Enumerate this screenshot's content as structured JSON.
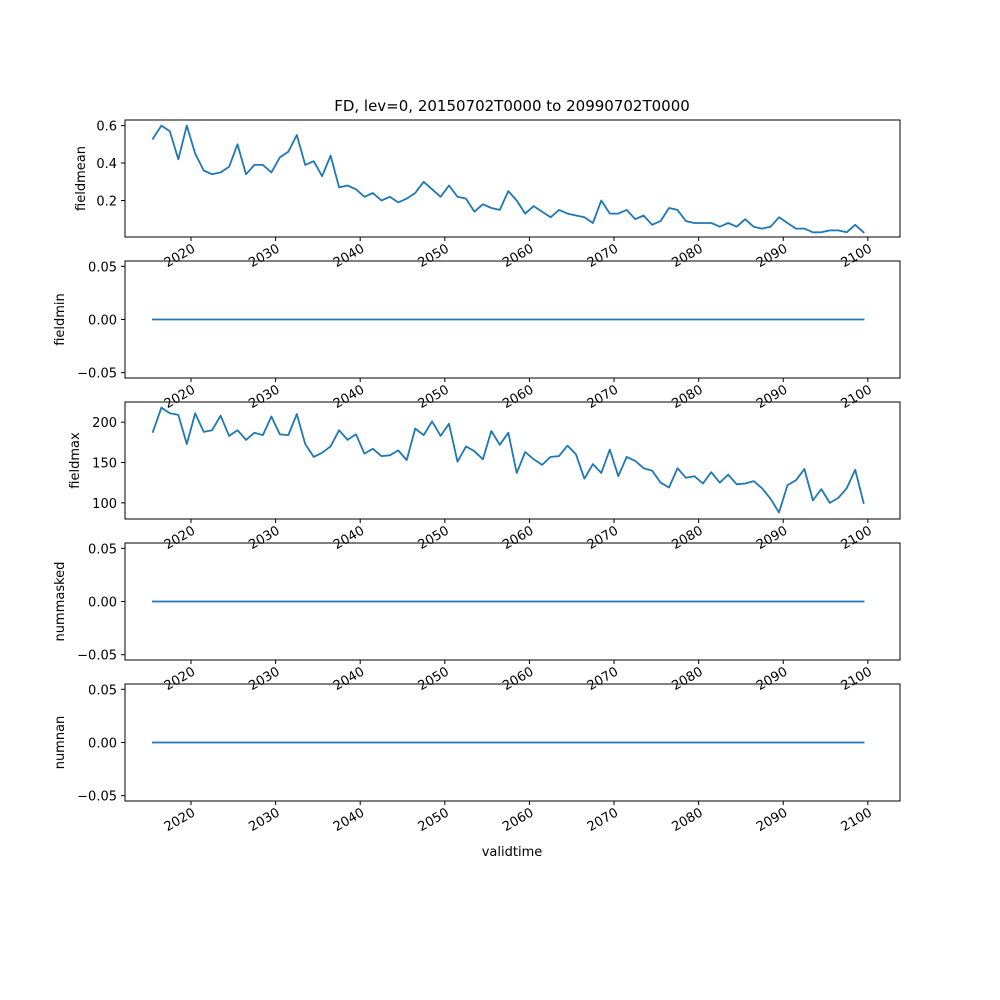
{
  "title": "FD, lev=0, 20150702T0000 to 20990702T0000",
  "xlabel": "validtime",
  "line_color": "#1f77b4",
  "chart_data": [
    {
      "type": "line",
      "ylabel": "fieldmean",
      "xlim": [
        2012.2,
        2103.8
      ],
      "ylim": [
        0.005,
        0.63
      ],
      "yticks": [
        0.2,
        0.4,
        0.6
      ],
      "yticklabels": [
        "0.2",
        "0.4",
        "0.6"
      ],
      "xticks": [
        2020,
        2030,
        2040,
        2050,
        2060,
        2070,
        2080,
        2090,
        2100
      ],
      "xticklabels": [
        "2020",
        "2030",
        "2040",
        "2050",
        "2060",
        "2070",
        "2080",
        "2090",
        "2100"
      ],
      "grid": false,
      "x_start": 2015.5,
      "x_step": 1,
      "values": [
        0.53,
        0.6,
        0.57,
        0.42,
        0.6,
        0.45,
        0.36,
        0.34,
        0.35,
        0.38,
        0.5,
        0.34,
        0.39,
        0.39,
        0.35,
        0.43,
        0.46,
        0.55,
        0.39,
        0.41,
        0.33,
        0.44,
        0.27,
        0.28,
        0.26,
        0.22,
        0.24,
        0.2,
        0.22,
        0.19,
        0.21,
        0.24,
        0.3,
        0.26,
        0.22,
        0.28,
        0.22,
        0.21,
        0.14,
        0.18,
        0.16,
        0.15,
        0.25,
        0.2,
        0.13,
        0.17,
        0.14,
        0.11,
        0.15,
        0.13,
        0.12,
        0.11,
        0.08,
        0.2,
        0.13,
        0.13,
        0.15,
        0.1,
        0.12,
        0.07,
        0.09,
        0.16,
        0.15,
        0.09,
        0.08,
        0.08,
        0.08,
        0.06,
        0.08,
        0.06,
        0.1,
        0.06,
        0.05,
        0.06,
        0.11,
        0.08,
        0.05,
        0.05,
        0.03,
        0.03,
        0.04,
        0.04,
        0.03,
        0.07,
        0.03
      ]
    },
    {
      "type": "line",
      "ylabel": "fieldmin",
      "xlim": [
        2012.2,
        2103.8
      ],
      "ylim": [
        -0.055,
        0.055
      ],
      "yticks": [
        -0.05,
        0.0,
        0.05
      ],
      "yticklabels": [
        "−0.05",
        "0.00",
        "0.05"
      ],
      "xticks": [
        2020,
        2030,
        2040,
        2050,
        2060,
        2070,
        2080,
        2090,
        2100
      ],
      "xticklabels": [
        "2020",
        "2030",
        "2040",
        "2050",
        "2060",
        "2070",
        "2080",
        "2090",
        "2100"
      ],
      "grid": false,
      "x_start": 2015.5,
      "x_step": 84,
      "values": [
        0,
        0
      ]
    },
    {
      "type": "line",
      "ylabel": "fieldmax",
      "xlim": [
        2012.2,
        2103.8
      ],
      "ylim": [
        80,
        225
      ],
      "yticks": [
        100,
        150,
        200
      ],
      "yticklabels": [
        "100",
        "150",
        "200"
      ],
      "xticks": [
        2020,
        2030,
        2040,
        2050,
        2060,
        2070,
        2080,
        2090,
        2100
      ],
      "xticklabels": [
        "2020",
        "2030",
        "2040",
        "2050",
        "2060",
        "2070",
        "2080",
        "2090",
        "2100"
      ],
      "grid": false,
      "x_start": 2015.5,
      "x_step": 1,
      "values": [
        188,
        218,
        211,
        209,
        173,
        211,
        188,
        190,
        208,
        183,
        190,
        178,
        187,
        184,
        207,
        185,
        184,
        210,
        173,
        157,
        162,
        170,
        190,
        178,
        185,
        161,
        167,
        158,
        159,
        165,
        153,
        192,
        184,
        201,
        183,
        198,
        151,
        170,
        164,
        154,
        189,
        172,
        187,
        137,
        163,
        154,
        147,
        157,
        158,
        171,
        160,
        130,
        148,
        137,
        166,
        133,
        157,
        152,
        143,
        140,
        125,
        119,
        143,
        131,
        133,
        124,
        138,
        125,
        135,
        123,
        124,
        127,
        118,
        105,
        88,
        122,
        128,
        142,
        103,
        117,
        100,
        106,
        118,
        141,
        100
      ]
    },
    {
      "type": "line",
      "ylabel": "nummasked",
      "xlim": [
        2012.2,
        2103.8
      ],
      "ylim": [
        -0.055,
        0.055
      ],
      "yticks": [
        -0.05,
        0.0,
        0.05
      ],
      "yticklabels": [
        "−0.05",
        "0.00",
        "0.05"
      ],
      "xticks": [
        2020,
        2030,
        2040,
        2050,
        2060,
        2070,
        2080,
        2090,
        2100
      ],
      "xticklabels": [
        "2020",
        "2030",
        "2040",
        "2050",
        "2060",
        "2070",
        "2080",
        "2090",
        "2100"
      ],
      "grid": false,
      "x_start": 2015.5,
      "x_step": 84,
      "values": [
        0,
        0
      ]
    },
    {
      "type": "line",
      "ylabel": "numnan",
      "xlim": [
        2012.2,
        2103.8
      ],
      "ylim": [
        -0.055,
        0.055
      ],
      "yticks": [
        -0.05,
        0.0,
        0.05
      ],
      "yticklabels": [
        "−0.05",
        "0.00",
        "0.05"
      ],
      "xticks": [
        2020,
        2030,
        2040,
        2050,
        2060,
        2070,
        2080,
        2090,
        2100
      ],
      "xticklabels": [
        "2020",
        "2030",
        "2040",
        "2050",
        "2060",
        "2070",
        "2080",
        "2090",
        "2100"
      ],
      "grid": false,
      "x_start": 2015.5,
      "x_step": 84,
      "values": [
        0,
        0
      ]
    }
  ]
}
